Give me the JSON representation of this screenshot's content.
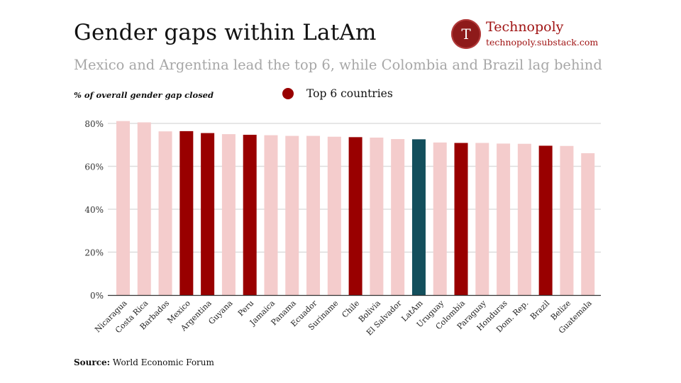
{
  "header": {
    "title": "Gender gaps within LatAm",
    "subtitle": "Mexico and Argentina lead the top 6, while Colombia and Brazil lag behind"
  },
  "brand": {
    "logo_letter": "T",
    "name": "Technopoly",
    "url": "technopoly.substack.com"
  },
  "source": {
    "label": "Source:",
    "text": "World Economic Forum"
  },
  "colors": {
    "top6": "#990000",
    "other": "#f4cccc",
    "aggregate": "#134f5c",
    "grid": "#dddddd",
    "axis": "#333333"
  },
  "chart_data": {
    "type": "bar",
    "title": "Gender gaps within LatAm",
    "subtitle": "Mexico and Argentina lead the top 6, while Colombia and Brazil lag behind",
    "ylabel": "% of overall gender gap closed",
    "xlabel": "",
    "ylim": [
      0,
      80
    ],
    "yticks": [
      "0%",
      "20%",
      "40%",
      "60%",
      "80%"
    ],
    "ytick_values": [
      0,
      20,
      40,
      60,
      80
    ],
    "grid": true,
    "legend": {
      "label": "Top 6 countries",
      "placement": "top-center"
    },
    "categories": [
      "Nicaragua",
      "Costa Rica",
      "Barbados",
      "Mexico",
      "Argentina",
      "Guyana",
      "Peru",
      "Jamaica",
      "Panama",
      "Ecuador",
      "Suriname",
      "Chile",
      "Bolivia",
      "El Salvador",
      "LatAm",
      "Uruguay",
      "Colombia",
      "Paraguay",
      "Honduras",
      "Dom. Rep.",
      "Brazil",
      "Belize",
      "Guatemala"
    ],
    "values": [
      81.1,
      80.5,
      76.3,
      76.4,
      75.5,
      75.0,
      74.7,
      74.5,
      74.2,
      74.2,
      73.8,
      73.6,
      73.4,
      72.7,
      72.6,
      71.1,
      70.9,
      70.9,
      70.6,
      70.5,
      69.6,
      69.5,
      66.1
    ],
    "groups": [
      "other",
      "other",
      "other",
      "top6",
      "top6",
      "other",
      "top6",
      "other",
      "other",
      "other",
      "other",
      "top6",
      "other",
      "other",
      "aggregate",
      "other",
      "top6",
      "other",
      "other",
      "other",
      "top6",
      "other",
      "other"
    ]
  }
}
